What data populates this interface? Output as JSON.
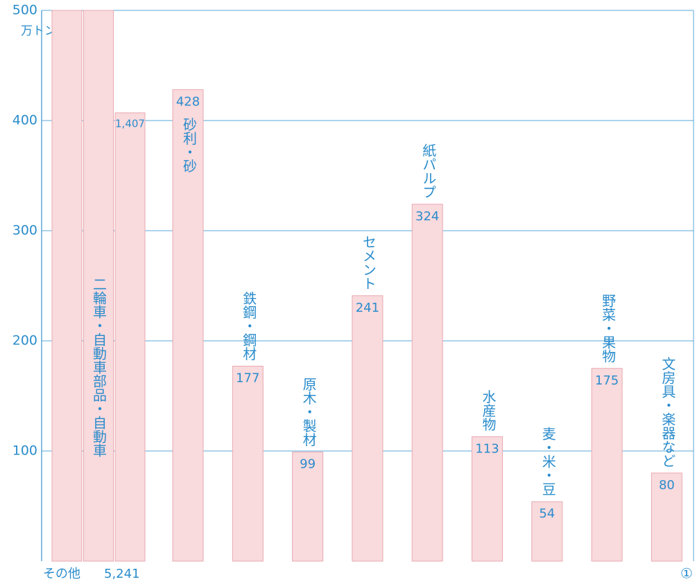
{
  "chart_data": {
    "type": "bar",
    "unit": "万トン",
    "categories": [
      "二輪車・自動車部品・自動車",
      "砂利・砂",
      "鉄鋼・鋼材",
      "原木・製材",
      "セメント",
      "紙パルプ",
      "水産物",
      "麦・米・豆",
      "野菜・果物",
      "文房具・楽器など"
    ],
    "values": [
      1407,
      428,
      177,
      99,
      241,
      324,
      113,
      54,
      175,
      80
    ],
    "value_labels": [
      "1,407",
      "428",
      "177",
      "99",
      "241",
      "324",
      "113",
      "54",
      "175",
      "80"
    ],
    "color": "#f9dadd",
    "ylim": [
      0,
      500
    ],
    "yticks": [
      100,
      200,
      300,
      400,
      500
    ],
    "grid": true,
    "annotations": [
      "その他",
      "5,241",
      "①"
    ]
  }
}
